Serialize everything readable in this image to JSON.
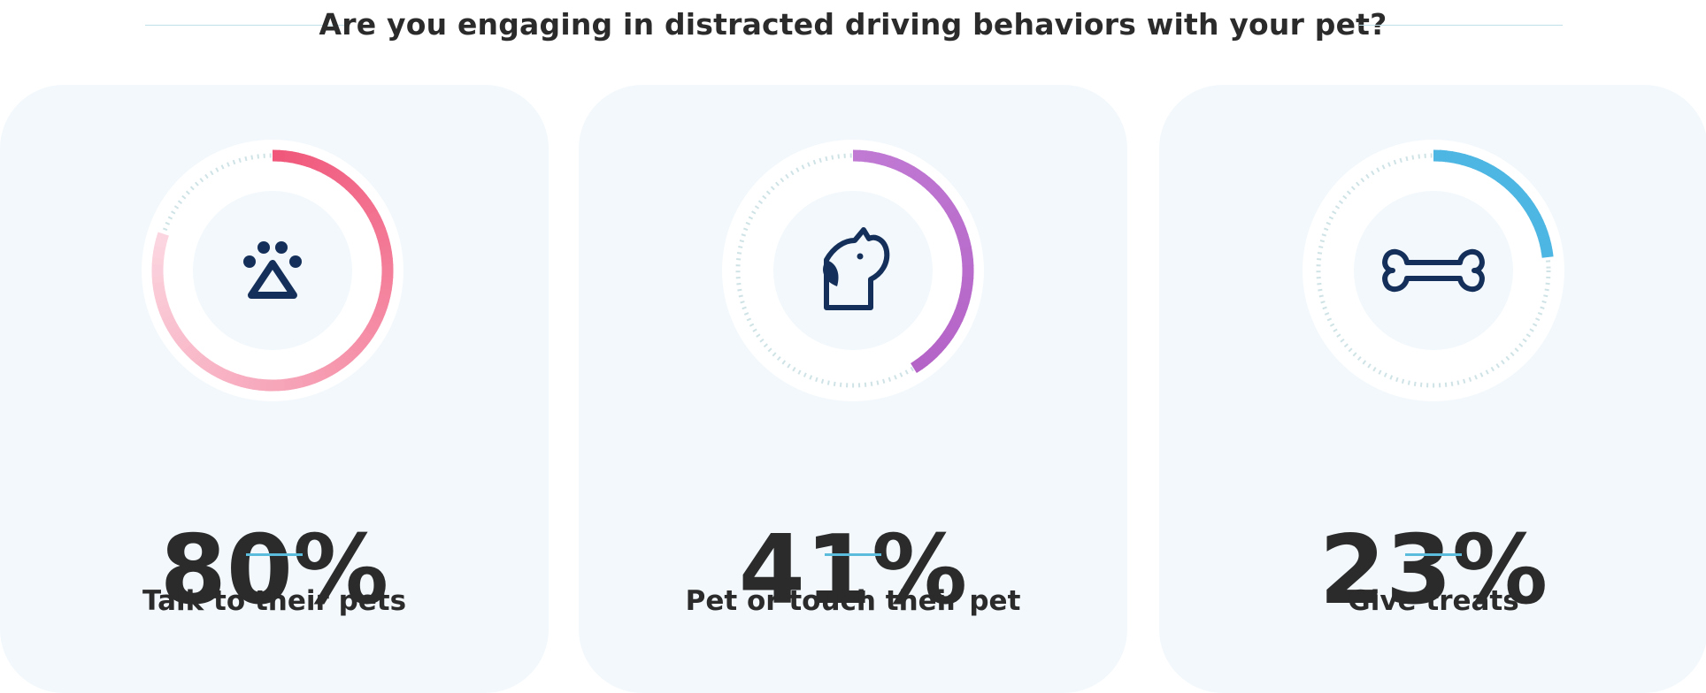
{
  "header": {
    "title": "Are you engaging in distracted driving behaviors with your pet?"
  },
  "chart_data": {
    "type": "donut",
    "title": "Are you engaging in distracted driving behaviors with your pet?",
    "unit": "%",
    "items": [
      {
        "label": "Talk to their pets",
        "value": 80,
        "display": "80%",
        "icon": "paw-icon",
        "color_start": "#f0577a",
        "color_end": "#fbd6e0"
      },
      {
        "label": "Pet or touch their pet",
        "value": 41,
        "display": "41%",
        "icon": "dog-icon",
        "color_start": "#c07ad4",
        "color_end": "#b463c6"
      },
      {
        "label": "Give treats",
        "value": 23,
        "display": "23%",
        "icon": "bone-icon",
        "color_start": "#4db6e2",
        "color_end": "#4db6e2"
      }
    ]
  },
  "colors": {
    "card_bg": "#f2f8fc",
    "track": "#cfe3e6",
    "icon": "#14305a",
    "accent": "#5bbcdc",
    "text": "#2b2b2b"
  }
}
